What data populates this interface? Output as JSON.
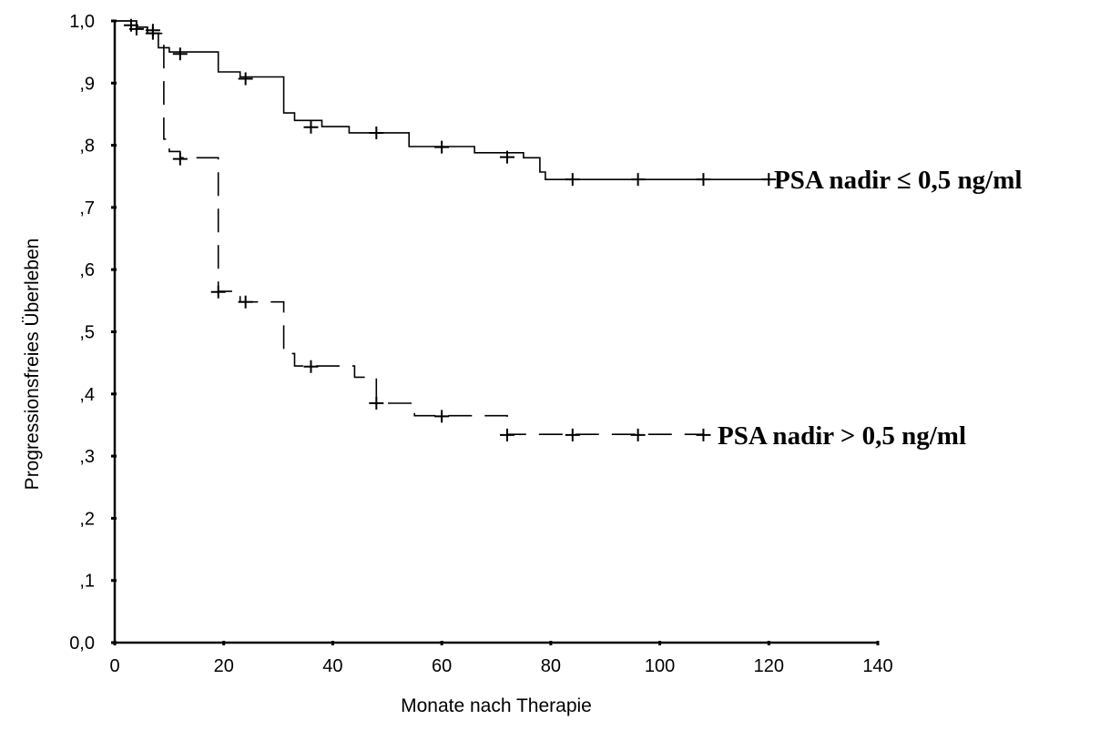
{
  "chart_data": {
    "type": "line",
    "step": true,
    "xlabel": "Monate nach Therapie",
    "ylabel": "Progressionsfreies Überleben",
    "xlim": [
      0,
      140
    ],
    "ylim": [
      0,
      1
    ],
    "x_ticks": [
      0,
      20,
      40,
      60,
      80,
      100,
      120,
      140
    ],
    "x_tick_labels": [
      "0",
      "20",
      "40",
      "60",
      "80",
      "100",
      "120",
      "140"
    ],
    "y_ticks": [
      0,
      0.1,
      0.2,
      0.3,
      0.4,
      0.5,
      0.6,
      0.7,
      0.8,
      0.9,
      1.0
    ],
    "y_tick_labels": [
      "0,0",
      ",1",
      ",2",
      ",3",
      ",4",
      ",5",
      ",6",
      ",7",
      ",8",
      ",9",
      "1,0"
    ],
    "grid": false,
    "series": [
      {
        "name": "PSA nadir ≤ 0,5 ng/ml",
        "line_style": "solid",
        "steps": [
          [
            0,
            1.0
          ],
          [
            4,
            0.99
          ],
          [
            6,
            0.98
          ],
          [
            8,
            0.957
          ],
          [
            10,
            0.95
          ],
          [
            19,
            0.918
          ],
          [
            23,
            0.91
          ],
          [
            31,
            0.852
          ],
          [
            33,
            0.84
          ],
          [
            38,
            0.83
          ],
          [
            43,
            0.82
          ],
          [
            54,
            0.798
          ],
          [
            66,
            0.788
          ],
          [
            75,
            0.78
          ],
          [
            78,
            0.757
          ],
          [
            79,
            0.745
          ],
          [
            120,
            0.745
          ]
        ],
        "censored": [
          [
            3,
            0.993
          ],
          [
            7,
            0.985
          ],
          [
            12,
            0.947
          ],
          [
            24,
            0.907
          ],
          [
            36,
            0.829
          ],
          [
            48,
            0.82
          ],
          [
            60,
            0.797
          ],
          [
            72,
            0.781
          ],
          [
            84,
            0.745
          ],
          [
            96,
            0.745
          ],
          [
            108,
            0.745
          ],
          [
            120,
            0.745
          ]
        ]
      },
      {
        "name": "PSA nadir > 0,5 ng/ml",
        "line_style": "dashed",
        "steps": [
          [
            0,
            1.0
          ],
          [
            4,
            0.99
          ],
          [
            6,
            0.98
          ],
          [
            9,
            0.81
          ],
          [
            10,
            0.79
          ],
          [
            12,
            0.78
          ],
          [
            19,
            0.565
          ],
          [
            23,
            0.548
          ],
          [
            31,
            0.465
          ],
          [
            33,
            0.445
          ],
          [
            44,
            0.427
          ],
          [
            48,
            0.385
          ],
          [
            55,
            0.365
          ],
          [
            72,
            0.335
          ],
          [
            108,
            0.335
          ]
        ],
        "censored": [
          [
            4,
            0.987
          ],
          [
            7,
            0.98
          ],
          [
            12,
            0.778
          ],
          [
            19,
            0.564
          ],
          [
            24,
            0.548
          ],
          [
            36,
            0.444
          ],
          [
            48,
            0.385
          ],
          [
            60,
            0.364
          ],
          [
            72,
            0.334
          ],
          [
            84,
            0.334
          ],
          [
            96,
            0.334
          ],
          [
            108,
            0.334
          ]
        ]
      }
    ]
  }
}
